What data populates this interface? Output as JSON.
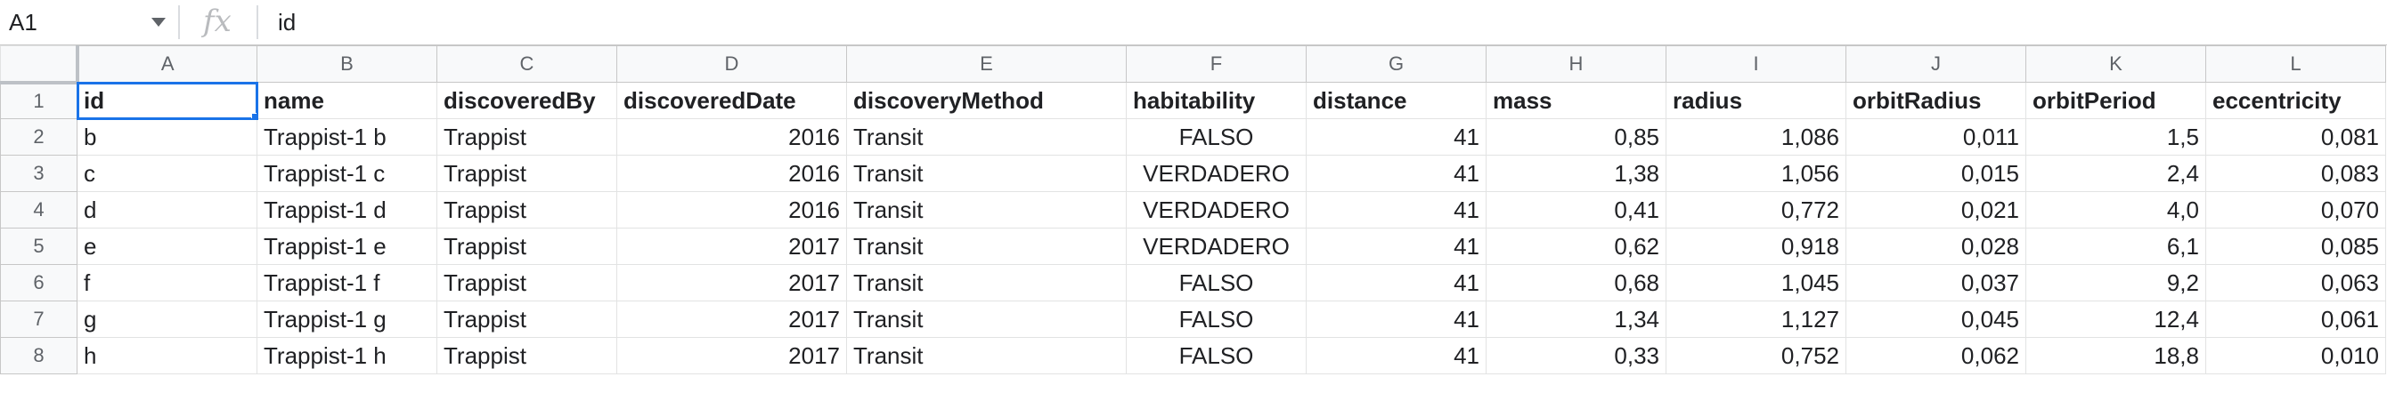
{
  "name_box": "A1",
  "formula_icon": "fx",
  "formula_value": "id",
  "columns": [
    "A",
    "B",
    "C",
    "D",
    "E",
    "F",
    "G",
    "H",
    "I",
    "J",
    "K",
    "L"
  ],
  "rows": [
    {
      "num": "1",
      "cells": [
        "id",
        "name",
        "discoveredBy",
        "discoveredDate",
        "discoveryMethod",
        "habitability",
        "distance",
        "mass",
        "radius",
        "orbitRadius",
        "orbitPeriod",
        "eccentricity"
      ]
    },
    {
      "num": "2",
      "cells": [
        "b",
        "Trappist-1 b",
        "Trappist",
        "2016",
        "Transit",
        "FALSO",
        "41",
        "0,85",
        "1,086",
        "0,011",
        "1,5",
        "0,081"
      ]
    },
    {
      "num": "3",
      "cells": [
        "c",
        "Trappist-1 c",
        "Trappist",
        "2016",
        "Transit",
        "VERDADERO",
        "41",
        "1,38",
        "1,056",
        "0,015",
        "2,4",
        "0,083"
      ]
    },
    {
      "num": "4",
      "cells": [
        "d",
        "Trappist-1 d",
        "Trappist",
        "2016",
        "Transit",
        "VERDADERO",
        "41",
        "0,41",
        "0,772",
        "0,021",
        "4,0",
        "0,070"
      ]
    },
    {
      "num": "5",
      "cells": [
        "e",
        "Trappist-1 e",
        "Trappist",
        "2017",
        "Transit",
        "VERDADERO",
        "41",
        "0,62",
        "0,918",
        "0,028",
        "6,1",
        "0,085"
      ]
    },
    {
      "num": "6",
      "cells": [
        "f",
        "Trappist-1 f",
        "Trappist",
        "2017",
        "Transit",
        "FALSO",
        "41",
        "0,68",
        "1,045",
        "0,037",
        "9,2",
        "0,063"
      ]
    },
    {
      "num": "7",
      "cells": [
        "g",
        "Trappist-1 g",
        "Trappist",
        "2017",
        "Transit",
        "FALSO",
        "41",
        "1,34",
        "1,127",
        "0,045",
        "12,4",
        "0,061"
      ]
    },
    {
      "num": "8",
      "cells": [
        "h",
        "Trappist-1 h",
        "Trappist",
        "2017",
        "Transit",
        "FALSO",
        "41",
        "0,33",
        "0,752",
        "0,062",
        "18,8",
        "0,010"
      ]
    }
  ]
}
